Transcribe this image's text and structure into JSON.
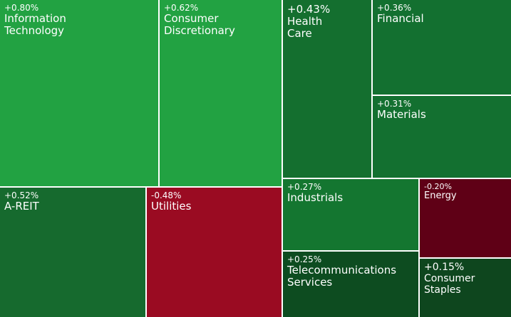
{
  "chart_data": {
    "type": "treemap",
    "categories": [
      "Information Technology",
      "Consumer Discretionary",
      "Health Care",
      "Financial",
      "Materials",
      "A-REIT",
      "Utilities",
      "Industrials",
      "Energy",
      "Telecommunications Services",
      "Consumer Staples"
    ],
    "values": [
      0.8,
      0.62,
      0.43,
      0.36,
      0.31,
      0.52,
      -0.48,
      0.27,
      -0.2,
      0.25,
      0.15
    ],
    "value_labels": [
      "+0.80%",
      "+0.62%",
      "+0.43%",
      "+0.36%",
      "+0.31%",
      "+0.52%",
      "-0.48%",
      "+0.27%",
      "-0.20%",
      "+0.25%",
      "+0.15%"
    ],
    "colors": [
      "#22a242",
      "#22a242",
      "#146f2f",
      "#137030",
      "#137030",
      "#166a2e",
      "#9a0b22",
      "#147630",
      "#5f0016",
      "#0d4c20",
      "#0e461e"
    ]
  }
}
